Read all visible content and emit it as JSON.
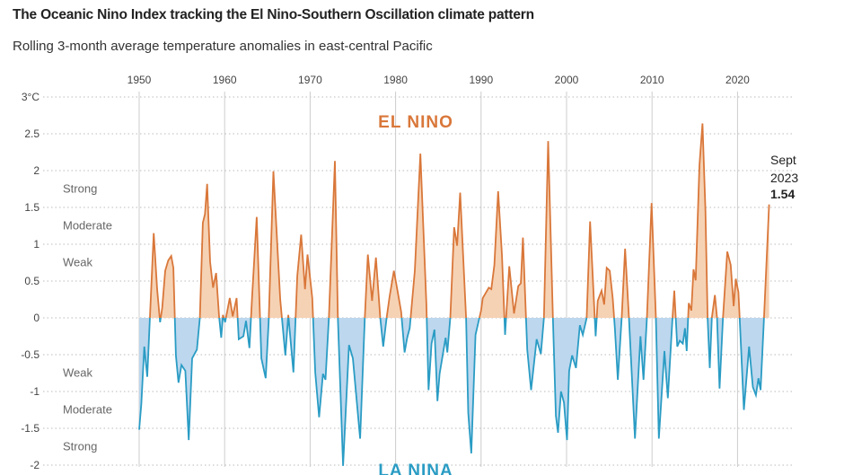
{
  "title": "The Oceanic Nino Index tracking the El Nino-Southern Oscillation climate pattern",
  "subtitle": "Rolling 3-month average temperature anomalies in east-central Pacific",
  "colors": {
    "el_nino_line": "#d9773a",
    "el_nino_fill": "#f6d2b4",
    "la_nina_line": "#2a9cc4",
    "la_nina_fill": "#bcd7ee"
  },
  "chart_data": {
    "type": "area",
    "title": "The Oceanic Nino Index tracking the El Nino-Southern Oscillation climate pattern",
    "subtitle": "Rolling 3-month average temperature anomalies in east-central Pacific",
    "xlim": [
      1950,
      2023.7
    ],
    "ylim": [
      -2,
      3
    ],
    "x_ticks": [
      "1950",
      "1960",
      "1970",
      "1980",
      "1990",
      "2000",
      "2010",
      "2020"
    ],
    "y_ticks": [
      {
        "v": 3,
        "label": "3°C"
      },
      {
        "v": 2.5,
        "label": "2.5"
      },
      {
        "v": 2,
        "label": "2"
      },
      {
        "v": 1.5,
        "label": "1.5"
      },
      {
        "v": 1,
        "label": "1"
      },
      {
        "v": 0.5,
        "label": "0.5"
      },
      {
        "v": 0,
        "label": "0"
      },
      {
        "v": -0.5,
        "label": "-0.5"
      },
      {
        "v": -1,
        "label": "-1"
      },
      {
        "v": -1.5,
        "label": "-1.5"
      },
      {
        "v": -2,
        "label": "-2"
      }
    ],
    "grid": true,
    "regions": {
      "positive": "EL NINO",
      "negative": "LA NINA"
    },
    "intensity_labels": [
      {
        "v": 1.75,
        "label": "Strong"
      },
      {
        "v": 1.25,
        "label": "Moderate"
      },
      {
        "v": 0.75,
        "label": "Weak"
      },
      {
        "v": -0.75,
        "label": "Weak"
      },
      {
        "v": -1.25,
        "label": "Moderate"
      },
      {
        "v": -1.75,
        "label": "Strong"
      }
    ],
    "annotation": {
      "month": "Sept",
      "year": "2023",
      "value": "1.54"
    },
    "x": [
      1950,
      1950.25,
      1950.6,
      1950.95,
      1951.7,
      1952.1,
      1952.45,
      1952.7,
      1953.05,
      1953.4,
      1953.75,
      1954.0,
      1954.3,
      1954.6,
      1954.95,
      1955.4,
      1955.8,
      1956.2,
      1956.75,
      1957.1,
      1957.45,
      1957.7,
      1957.95,
      1958.3,
      1958.65,
      1959.0,
      1959.35,
      1959.6,
      1959.8,
      1960.05,
      1960.6,
      1960.95,
      1961.4,
      1961.65,
      1962.2,
      1962.5,
      1962.9,
      1963.2,
      1963.75,
      1964.3,
      1964.8,
      1965.15,
      1965.7,
      1966.5,
      1967.1,
      1967.45,
      1968.05,
      1968.5,
      1968.95,
      1969.4,
      1969.7,
      1970.25,
      1970.6,
      1971.05,
      1971.5,
      1971.8,
      1972.2,
      1972.9,
      1973.25,
      1973.85,
      1974.55,
      1975.0,
      1975.85,
      1976.4,
      1976.75,
      1977.25,
      1977.7,
      1978.2,
      1978.55,
      1978.95,
      1979.3,
      1979.8,
      1980.25,
      1980.65,
      1981.05,
      1981.35,
      1981.65,
      1982.25,
      1982.9,
      1983.6,
      1983.85,
      1984.2,
      1984.55,
      1984.9,
      1985.15,
      1985.85,
      1986.05,
      1986.4,
      1986.85,
      1987.2,
      1987.55,
      1988.25,
      1988.5,
      1988.85,
      1989.35,
      1990.0,
      1990.2,
      1990.9,
      1991.2,
      1991.55,
      1992.0,
      1992.45,
      1992.8,
      1993.3,
      1993.85,
      1994.35,
      1994.65,
      1994.9,
      1995.4,
      1995.85,
      1996.5,
      1997.0,
      1997.35,
      1997.85,
      1998.4,
      1998.75,
      1999.0,
      1999.35,
      1999.7,
      2000.05,
      2000.3,
      2000.65,
      2001.1,
      2001.55,
      2001.9,
      2002.35,
      2002.75,
      2003.3,
      2003.4,
      2003.65,
      2004.1,
      2004.4,
      2004.7,
      2005.05,
      2005.4,
      2005.65,
      2006.0,
      2006.45,
      2006.85,
      2007.3,
      2008.0,
      2008.65,
      2009.0,
      2009.4,
      2009.95,
      2010.45,
      2010.8,
      2011.45,
      2011.85,
      2012.4,
      2012.6,
      2012.95,
      2013.25,
      2013.6,
      2013.85,
      2014.05,
      2014.3,
      2014.6,
      2014.85,
      2015.1,
      2015.55,
      2015.9,
      2016.25,
      2016.5,
      2016.75,
      2017.0,
      2017.35,
      2017.6,
      2017.9,
      2018.3,
      2018.8,
      2019.2,
      2019.55,
      2019.8,
      2020.1,
      2020.25,
      2020.75,
      2021.35,
      2021.8,
      2022.15,
      2022.45,
      2022.7,
      2023.1,
      2023.7
    ],
    "y": [
      -1.52,
      -1.17,
      -0.39,
      -0.8,
      1.15,
      0.39,
      -0.06,
      0.14,
      0.64,
      0.78,
      0.84,
      0.68,
      -0.51,
      -0.88,
      -0.64,
      -0.72,
      -1.66,
      -0.55,
      -0.43,
      0,
      1.29,
      1.41,
      1.82,
      0.76,
      0.41,
      0.61,
      0.02,
      -0.27,
      0.04,
      -0.06,
      0.27,
      0.02,
      0.27,
      -0.29,
      -0.25,
      -0.04,
      -0.41,
      0.27,
      1.37,
      -0.55,
      -0.82,
      -0.06,
      1.99,
      0.25,
      -0.51,
      0.04,
      -0.74,
      0.57,
      1.13,
      0.39,
      0.86,
      0.27,
      -0.74,
      -1.35,
      -0.76,
      -0.84,
      0,
      2.13,
      0,
      -2.01,
      -0.37,
      -0.55,
      -1.64,
      0,
      0.86,
      0.23,
      0.82,
      0,
      -0.39,
      0,
      0.29,
      0.64,
      0.35,
      0.08,
      -0.47,
      -0.27,
      -0.14,
      0.64,
      2.23,
      0.18,
      -0.98,
      -0.35,
      -0.16,
      -1.13,
      -0.76,
      -0.27,
      -0.47,
      0,
      1.23,
      0.98,
      1.7,
      0,
      -1.29,
      -1.84,
      -0.23,
      0.1,
      0.27,
      0.41,
      0.39,
      0.72,
      1.72,
      0.84,
      -0.23,
      0.7,
      0.06,
      0.43,
      0.47,
      1.09,
      -0.43,
      -0.98,
      -0.29,
      -0.49,
      0,
      2.4,
      0,
      -1.33,
      -1.56,
      -1.0,
      -1.15,
      -1.66,
      -0.72,
      -0.51,
      -0.68,
      -0.1,
      -0.23,
      0,
      1.31,
      0,
      -0.25,
      0.23,
      0.37,
      0.18,
      0.68,
      0.64,
      0.27,
      -0.14,
      -0.84,
      0,
      0.94,
      0,
      -1.64,
      -0.25,
      -0.84,
      0,
      1.56,
      0,
      -1.64,
      -0.45,
      -1.09,
      0,
      0.37,
      -0.39,
      -0.31,
      -0.35,
      -0.14,
      -0.45,
      0.2,
      0.1,
      0.66,
      0.51,
      2.07,
      2.64,
      1.45,
      0,
      -0.68,
      0,
      0.31,
      0,
      -0.96,
      0,
      0.9,
      0.72,
      0.16,
      0.53,
      0.35,
      0,
      -1.25,
      -0.39,
      -0.94,
      -1.05,
      -0.82,
      -0.98,
      0,
      1.54
    ]
  }
}
